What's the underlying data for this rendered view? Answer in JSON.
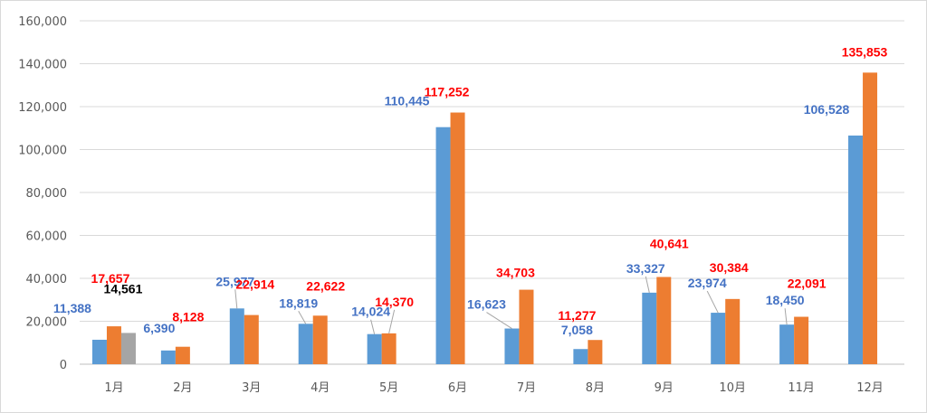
{
  "chart_data": {
    "type": "bar",
    "title": "",
    "xlabel": "",
    "ylabel": "",
    "ylim": [
      0,
      160000
    ],
    "y_ticks": [
      "0",
      "20,000",
      "40,000",
      "60,000",
      "80,000",
      "100,000",
      "120,000",
      "140,000",
      "160,000"
    ],
    "grid": true,
    "legend": "none",
    "categories": [
      "1月",
      "2月",
      "3月",
      "4月",
      "5月",
      "6月",
      "7月",
      "8月",
      "9月",
      "10月",
      "11月",
      "12月"
    ],
    "series": [
      {
        "color": "#5b9bd5",
        "label_color": "#4472c4",
        "values": [
          11388,
          6390,
          25977,
          18819,
          14024,
          110445,
          16623,
          7058,
          33327,
          23974,
          18450,
          106528
        ],
        "labels": [
          "11,388",
          "6,390",
          "25,977",
          "18,819",
          "14,024",
          "110,445",
          "16,623",
          "7,058",
          "33,327",
          "23,974",
          "18,450",
          "106,528"
        ]
      },
      {
        "color": "#ed7d31",
        "label_color": "#ff0000",
        "values": [
          17657,
          8128,
          22914,
          22622,
          14370,
          117252,
          34703,
          11277,
          40641,
          30384,
          22091,
          135853
        ],
        "labels": [
          "17,657",
          "8,128",
          "22,914",
          "22,622",
          "14,370",
          "117,252",
          "34,703",
          "11,277",
          "40,641",
          "30,384",
          "22,091",
          "135,853"
        ]
      },
      {
        "color": "#a5a5a5",
        "label_color": "#000000",
        "values": [
          14561,
          null,
          null,
          null,
          null,
          null,
          null,
          null,
          null,
          null,
          null,
          null
        ],
        "labels": [
          "14,561",
          "",
          "",
          "",
          "",
          "",
          "",
          "",
          "",
          "",
          "",
          ""
        ]
      }
    ]
  }
}
